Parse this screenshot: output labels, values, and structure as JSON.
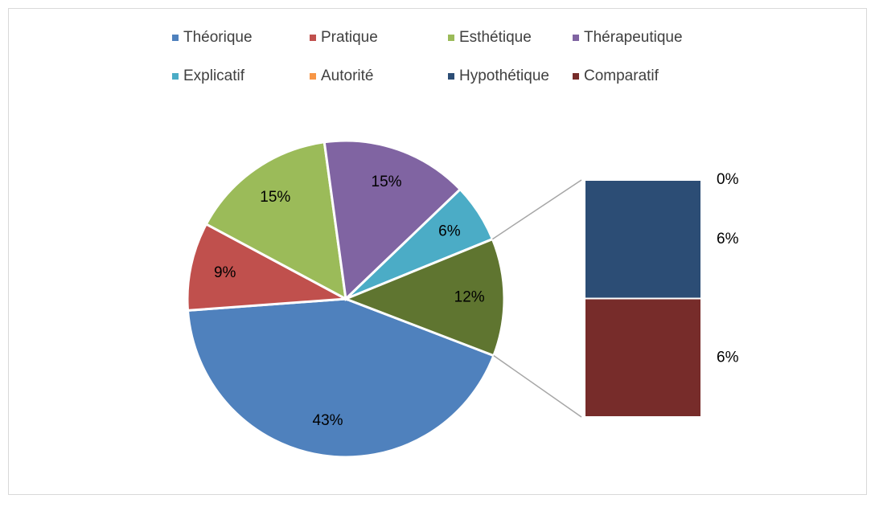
{
  "chart_data": {
    "type": "bar-of-pie",
    "categories": [
      "Théorique",
      "Pratique",
      "Esthétique",
      "Thérapeutique",
      "Explicatif",
      "Autorité",
      "Hypothétique",
      "Comparatif"
    ],
    "values": [
      43,
      9,
      15,
      15,
      6,
      0,
      6,
      6
    ],
    "value_labels": [
      "43%",
      "9%",
      "15%",
      "15%",
      "6%",
      "0%",
      "6%",
      "6%"
    ],
    "colors": [
      "#4f81bd",
      "#c0504d",
      "#9bbb59",
      "#8064a2",
      "#4bacc6",
      "#f79646",
      "#2c4d75",
      "#772c2a"
    ],
    "secondary_count": 3,
    "other": {
      "value": 12,
      "label": "12%",
      "color": "#5f7530"
    },
    "legend": "top"
  }
}
